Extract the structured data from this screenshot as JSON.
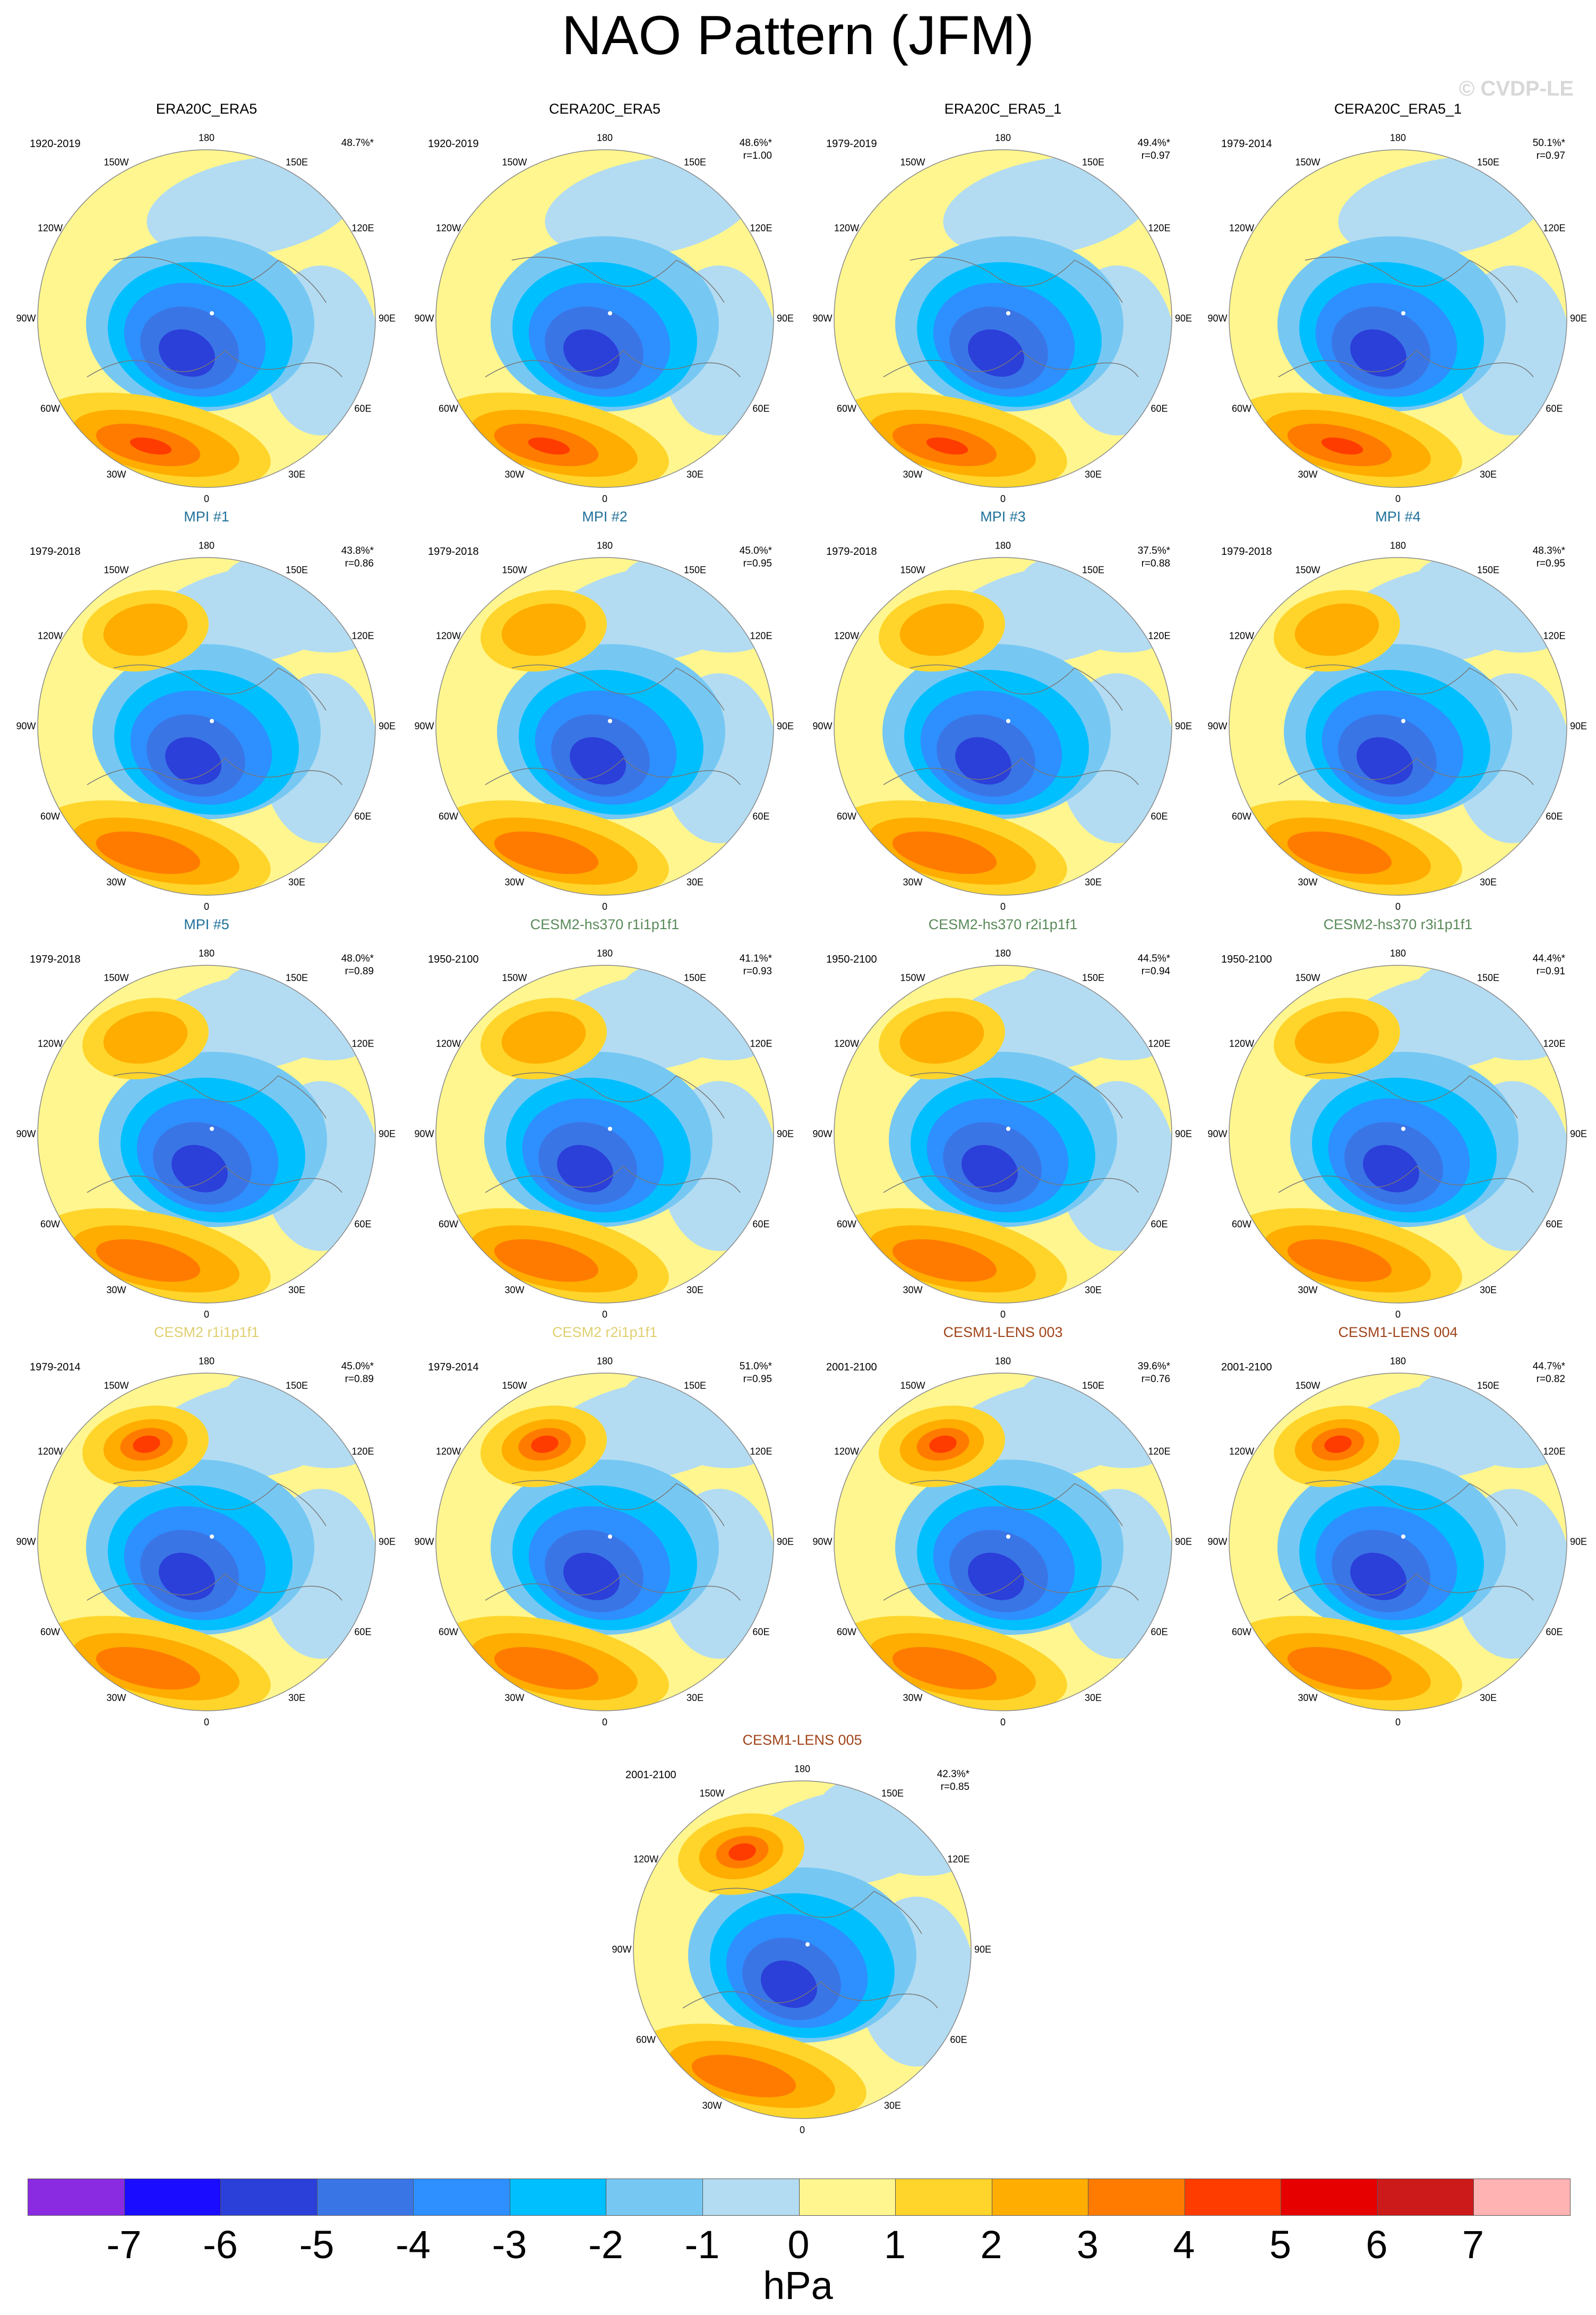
{
  "title": "NAO Pattern (JFM)",
  "credit": "© CVDP-LE",
  "units": "hPa",
  "colorbar": {
    "colors": [
      "#8a2be2",
      "#1a0dff",
      "#2b3fd9",
      "#3a75e6",
      "#2e8fff",
      "#00bfff",
      "#76c8f3",
      "#b3dcf2",
      "#fff68f",
      "#ffd52b",
      "#ffad00",
      "#ff7b00",
      "#ff3c00",
      "#e60000",
      "#cc1a1a",
      "#ffb3b3"
    ],
    "ticks": [
      "-7",
      "-6",
      "-5",
      "-4",
      "-3",
      "-2",
      "-1",
      "0",
      "1",
      "2",
      "3",
      "4",
      "5",
      "6",
      "7"
    ]
  },
  "longitude_labels": [
    "180",
    "150E",
    "120E",
    "90E",
    "60E",
    "30E",
    "0",
    "30W",
    "60W",
    "90W",
    "120W",
    "150W"
  ],
  "panels": [
    {
      "title": "ERA20C_ERA5",
      "title_color": "#000000",
      "period": "1920-2019",
      "pct": "48.7%*",
      "r": "",
      "pattern": "obs"
    },
    {
      "title": "CERA20C_ERA5",
      "title_color": "#000000",
      "period": "1920-2019",
      "pct": "48.6%*",
      "r": "r=1.00",
      "pattern": "obs"
    },
    {
      "title": "ERA20C_ERA5_1",
      "title_color": "#000000",
      "period": "1979-2019",
      "pct": "49.4%*",
      "r": "r=0.97",
      "pattern": "obs"
    },
    {
      "title": "CERA20C_ERA5_1",
      "title_color": "#000000",
      "period": "1979-2014",
      "pct": "50.1%*",
      "r": "r=0.97",
      "pattern": "obs"
    },
    {
      "title": "MPI #1",
      "title_color": "#1f6f99",
      "period": "1979-2018",
      "pct": "43.8%*",
      "r": "r=0.86",
      "pattern": "pac"
    },
    {
      "title": "MPI #2",
      "title_color": "#1f6f99",
      "period": "1979-2018",
      "pct": "45.0%*",
      "r": "r=0.95",
      "pattern": "pac"
    },
    {
      "title": "MPI #3",
      "title_color": "#1f6f99",
      "period": "1979-2018",
      "pct": "37.5%*",
      "r": "r=0.88",
      "pattern": "pac"
    },
    {
      "title": "MPI #4",
      "title_color": "#1f6f99",
      "period": "1979-2018",
      "pct": "48.3%*",
      "r": "r=0.95",
      "pattern": "pac"
    },
    {
      "title": "MPI #5",
      "title_color": "#1f6f99",
      "period": "1979-2018",
      "pct": "48.0%*",
      "r": "r=0.89",
      "pattern": "pac"
    },
    {
      "title": "CESM2-hs370 r1i1p1f1",
      "title_color": "#5a8a5a",
      "period": "1950-2100",
      "pct": "41.1%*",
      "r": "r=0.93",
      "pattern": "pac"
    },
    {
      "title": "CESM2-hs370 r2i1p1f1",
      "title_color": "#5a8a5a",
      "period": "1950-2100",
      "pct": "44.5%*",
      "r": "r=0.94",
      "pattern": "pac"
    },
    {
      "title": "CESM2-hs370 r3i1p1f1",
      "title_color": "#5a8a5a",
      "period": "1950-2100",
      "pct": "44.4%*",
      "r": "r=0.91",
      "pattern": "pac"
    },
    {
      "title": "CESM2 r1i1p1f1",
      "title_color": "#e0cf70",
      "period": "1979-2014",
      "pct": "45.0%*",
      "r": "r=0.89",
      "pattern": "strong"
    },
    {
      "title": "CESM2 r2i1p1f1",
      "title_color": "#e0cf70",
      "period": "1979-2014",
      "pct": "51.0%*",
      "r": "r=0.95",
      "pattern": "strong"
    },
    {
      "title": "CESM1-LENS 003",
      "title_color": "#a0441a",
      "period": "2001-2100",
      "pct": "39.6%*",
      "r": "r=0.76",
      "pattern": "strong"
    },
    {
      "title": "CESM1-LENS 004",
      "title_color": "#a0441a",
      "period": "2001-2100",
      "pct": "44.7%*",
      "r": "r=0.82",
      "pattern": "strong"
    },
    {
      "title": "CESM1-LENS 005",
      "title_color": "#a0441a",
      "period": "2001-2100",
      "pct": "42.3%*",
      "r": "r=0.85",
      "pattern": "strong"
    }
  ]
}
